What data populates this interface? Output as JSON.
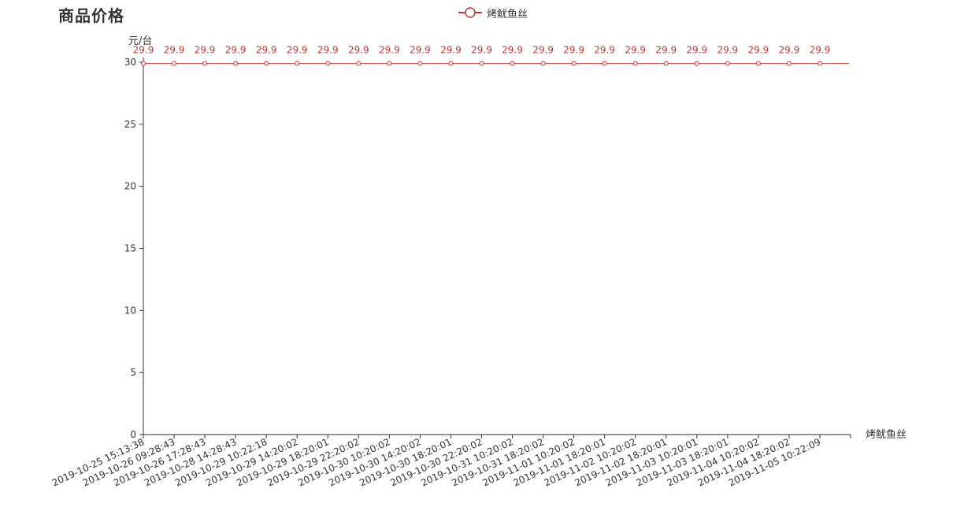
{
  "page": {
    "title": "商品价格"
  },
  "legend": {
    "label": "烤鱿鱼丝"
  },
  "colors": {
    "series": "#c23531",
    "axis": "#333333",
    "text": "#333333"
  },
  "chart_data": {
    "type": "line",
    "title": "商品价格",
    "ylabel": "元/台",
    "xlabel": "烤鱿鱼丝",
    "ylim": [
      0,
      30
    ],
    "yticks": [
      0,
      5,
      10,
      15,
      20,
      25,
      30
    ],
    "grid": false,
    "legend_position": "top-center",
    "x": [
      "2019-10-25 15:13:38",
      "2019-10-26 09:28:43",
      "2019-10-26 17:28:43",
      "2019-10-28 14:28:43",
      "2019-10-29 10:22:18",
      "2019-10-29 14:20:02",
      "2019-10-29 18:20:01",
      "2019-10-29 22:20:02",
      "2019-10-30 10:20:02",
      "2019-10-30 14:20:02",
      "2019-10-30 18:20:01",
      "2019-10-30 22:20:02",
      "2019-10-31 10:20:02",
      "2019-10-31 18:20:02",
      "2019-11-01 10:20:02",
      "2019-11-01 18:20:01",
      "2019-11-02 10:20:02",
      "2019-11-02 18:20:01",
      "2019-11-03 10:20:01",
      "2019-11-03 18:20:01",
      "2019-11-04 10:20:02",
      "2019-11-04 18:20:02",
      "2019-11-05 10:22:09"
    ],
    "series": [
      {
        "name": "烤鱿鱼丝",
        "values": [
          29.9,
          29.9,
          29.9,
          29.9,
          29.9,
          29.9,
          29.9,
          29.9,
          29.9,
          29.9,
          29.9,
          29.9,
          29.9,
          29.9,
          29.9,
          29.9,
          29.9,
          29.9,
          29.9,
          29.9,
          29.9,
          29.9,
          29.9
        ]
      }
    ]
  }
}
